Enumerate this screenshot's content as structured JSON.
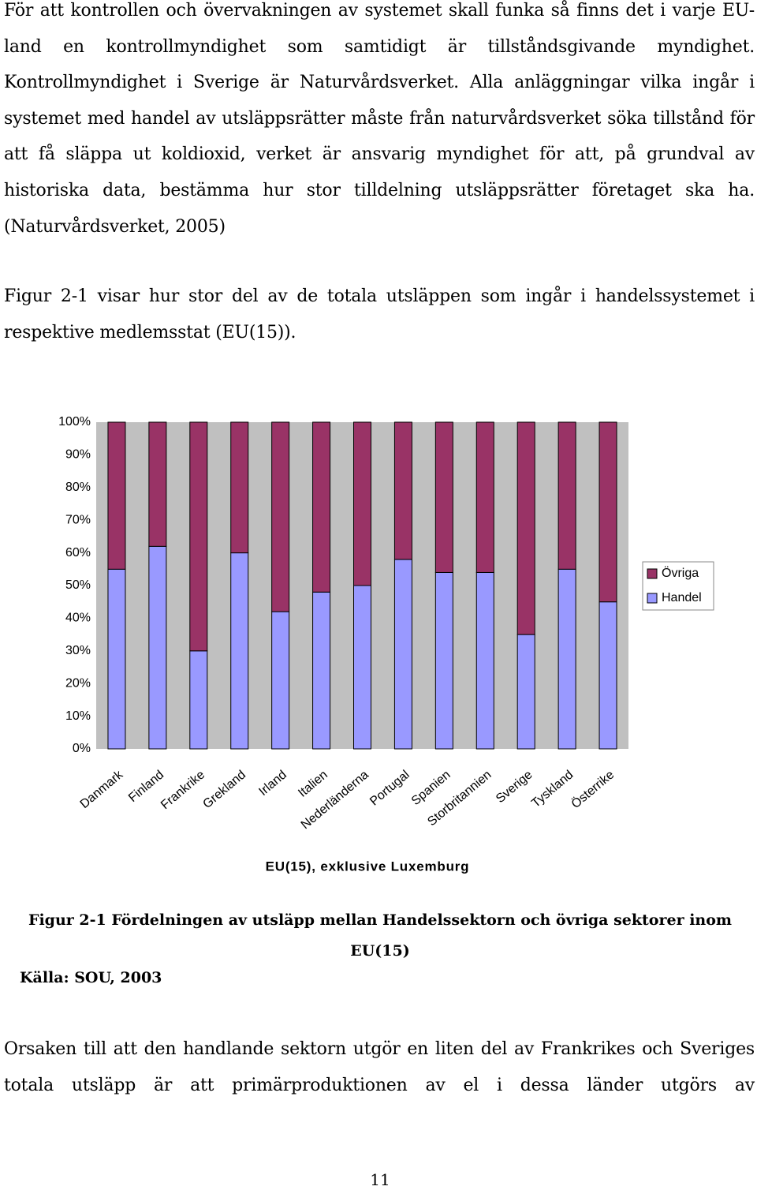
{
  "paragraphs": [
    "För att kontrollen och övervakningen av systemet skall funka så finns det i varje EU-land en kontrollmyndighet som samtidigt är tillståndsgivande myndighet. Kontrollmyndighet i Sverige är Naturvårdsverket. Alla anläggningar vilka ingår i systemet med handel av utsläppsrätter måste från naturvårdsverket söka tillstånd för att få släppa ut koldioxid, verket är ansvarig myndighet för att, på grundval av historiska data, bestämma hur stor tilldelning utsläppsrätter företaget ska ha. (Naturvårdsverket, 2005)",
    "Figur 2-1 visar hur stor del av de totala utsläppen som ingår i handelssystemet i respektive medlemsstat (EU(15))."
  ],
  "chart_data": {
    "type": "bar",
    "stacked": true,
    "x_label": "EU(15), exklusive Luxemburg",
    "categories": [
      "Danmark",
      "Finland",
      "Frankrike",
      "Grekland",
      "Irland",
      "Italien",
      "Nederländerna",
      "Portugal",
      "Spanien",
      "Storbritannien",
      "Sverige",
      "Tyskland",
      "Österrike"
    ],
    "series": [
      {
        "name": "Handel",
        "color": "#9999ff",
        "values": [
          55,
          62,
          30,
          60,
          42,
          48,
          50,
          58,
          54,
          54,
          35,
          55,
          45
        ]
      },
      {
        "name": "Övriga",
        "color": "#993366",
        "values": [
          45,
          38,
          70,
          40,
          58,
          52,
          50,
          42,
          46,
          46,
          65,
          45,
          55
        ]
      }
    ],
    "ylim": [
      0,
      100
    ],
    "yticks": [
      {
        "value": 0,
        "label": "0%"
      },
      {
        "value": 10,
        "label": "10%"
      },
      {
        "value": 20,
        "label": "20%"
      },
      {
        "value": 30,
        "label": "30%"
      },
      {
        "value": 40,
        "label": "40%"
      },
      {
        "value": 50,
        "label": "50%"
      },
      {
        "value": 60,
        "label": "60%"
      },
      {
        "value": 70,
        "label": "70%"
      },
      {
        "value": 80,
        "label": "80%"
      },
      {
        "value": 90,
        "label": "90%"
      },
      {
        "value": 100,
        "label": "100%"
      }
    ],
    "grid": false,
    "legend": "right",
    "background": "#c0c0c0"
  },
  "caption": "Figur 2-1 Fördelningen av utsläpp mellan Handelssektorn och övriga sektorer inom EU(15)",
  "source": "Källa: SOU, 2003",
  "paragraph_after": "Orsaken till att den handlande sektorn utgör en liten del av Frankrikes och Sveriges totala utsläpp är att primärproduktionen av el i dessa länder utgörs av",
  "page_number": "11"
}
